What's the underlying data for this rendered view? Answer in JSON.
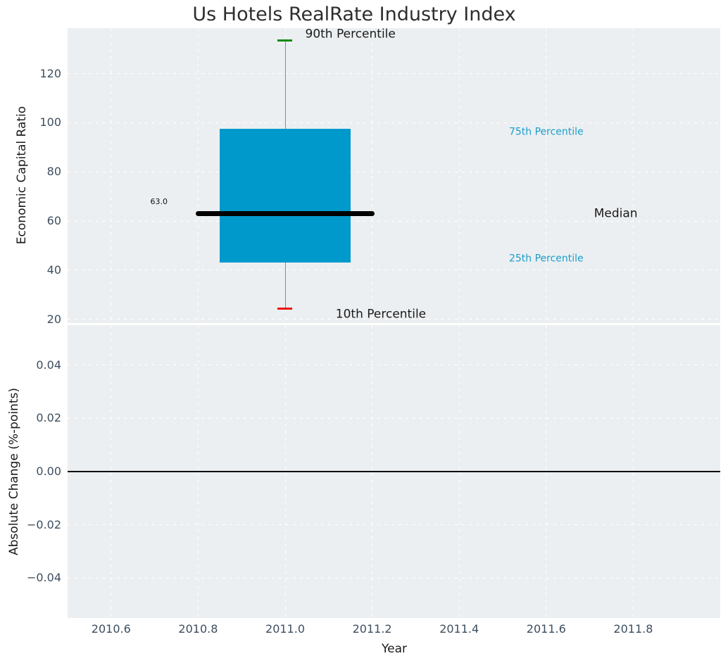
{
  "style": {
    "axes_background": "#eceff1",
    "grid_color": "#ffffff",
    "box_color": "#0099cc",
    "median_color": "#000000",
    "whisker_color": "#8a8a8a",
    "cap_top_color": "#0e8a0e",
    "cap_bottom_color": "#ee1111",
    "tick_label_color": "#3d4e5f",
    "text_color": "#1a1a1a",
    "annotation_accent_color": "#1a9ecd",
    "zero_line_color": "#000000"
  },
  "chart_data": {
    "type": "box",
    "title": "Us Hotels RealRate Industry Index",
    "xlabel": "Year",
    "grid": true,
    "legend": false,
    "xlim": [
      2010.5,
      2012.0
    ],
    "xticks": [
      2010.6,
      2010.8,
      2011.0,
      2011.2,
      2011.4,
      2011.6,
      2011.8
    ],
    "xtick_labels": [
      "2010.6",
      "2010.8",
      "2011.0",
      "2011.2",
      "2011.4",
      "2011.6",
      "2011.8"
    ],
    "subplots": [
      {
        "name": "economic-capital-ratio",
        "ylabel": "Economic Capital Ratio",
        "ylim": [
          18.5,
          138.5
        ],
        "yticks": [
          20,
          40,
          60,
          80,
          100,
          120
        ],
        "ytick_labels": [
          "20",
          "40",
          "60",
          "80",
          "100",
          "120"
        ],
        "series": [
          {
            "name": "box-2011",
            "x": 2011.0,
            "p10": 24.5,
            "q1": 43.0,
            "median": 63.0,
            "q3": 97.5,
            "p90": 133.5,
            "box_halfwidth": 0.15,
            "median_halfwidth": 0.205,
            "cap_halfwidth": 0.017
          }
        ],
        "annotations": [
          {
            "id": "p90-label",
            "text": "90th Percentile",
            "x": 2011.15,
            "y": 135.9,
            "color": "#1a1a1a",
            "size": 17
          },
          {
            "id": "p10-label",
            "text": "10th Percentile",
            "x": 2011.22,
            "y": 21.9,
            "color": "#1a1a1a",
            "size": 17
          },
          {
            "id": "median-label",
            "text": "Median",
            "x": 2011.76,
            "y": 63.0,
            "color": "#1a1a1a",
            "size": 17
          },
          {
            "id": "p75-label",
            "text": "75th Percentile",
            "x": 2011.6,
            "y": 96.0,
            "color": "#1a9ecd",
            "size": 14
          },
          {
            "id": "p25-label",
            "text": "25th Percentile",
            "x": 2011.6,
            "y": 44.7,
            "color": "#1a9ecd",
            "size": 14
          },
          {
            "id": "median-value-label",
            "text": "63.0",
            "x": 2010.71,
            "y": 67.9,
            "color": "#111111",
            "size": 11
          }
        ]
      },
      {
        "name": "absolute-change",
        "ylabel": "Absolute Change (%-points)",
        "ylim": [
          -0.055,
          0.055
        ],
        "yticks": [
          0.04,
          0.02,
          0.0,
          -0.02,
          -0.04
        ],
        "ytick_labels": [
          "0.04",
          "0.02",
          "0.00",
          "−0.02",
          "−0.04"
        ],
        "zero_line": 0.0
      }
    ]
  }
}
